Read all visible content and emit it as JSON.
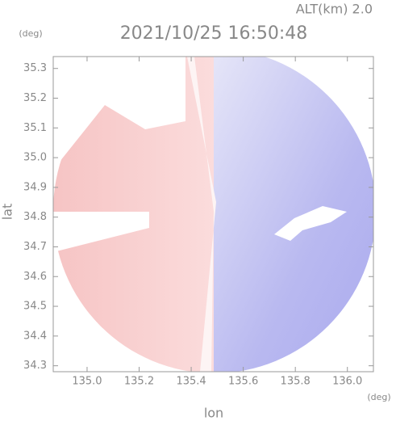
{
  "chart_data": {
    "type": "radar-field",
    "title": "2021/10/25 16:50:48",
    "subtitle": "ALT(km) 2.0",
    "x_label": "lon",
    "y_label": "lat",
    "x_unit": "(deg)",
    "y_unit": "(deg)",
    "xlim": [
      134.87,
      136.1
    ],
    "xticks": [
      {
        "value": 135,
        "label": "135.0"
      },
      135.2,
      135.4,
      135.6,
      135.8,
      {
        "value": 136,
        "label": "136.0"
      }
    ],
    "ylim": [
      34.28,
      35.34
    ],
    "yticks": [
      34.3,
      34.4,
      34.5,
      34.6,
      34.7,
      34.8,
      34.9,
      {
        "value": 35,
        "label": "35.0"
      },
      35.1,
      35.2,
      35.3
    ]
  }
}
